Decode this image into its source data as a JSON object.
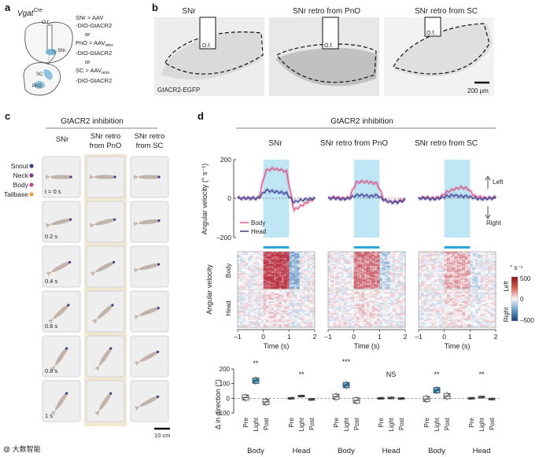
{
  "panel_labels": [
    "a",
    "b",
    "c",
    "d"
  ],
  "colors": {
    "body": "#d9558a",
    "head": "#3c3f8f",
    "light_band": "#bfe6f5",
    "light_bar": "#2aa7d6",
    "box_fill": "#5ab8e3",
    "heat_pos": "#b2182b",
    "heat_neg": "#2166ac",
    "legend_snout": "#3b3e8c",
    "legend_neck": "#7a3a8a",
    "legend_body": "#c2478a",
    "legend_tailbase": "#e8a23a"
  },
  "panel_a": {
    "title": "Vgat",
    "title_sup": "Cre",
    "of_label": "O.f.",
    "snr_label": "SNr",
    "sc_label": "SC",
    "pno_label": "PnO",
    "injections": [
      {
        "line1": "SNr > AAV",
        "line2": "-DIO-GtACR2"
      },
      {
        "line1": "PnO > AAV",
        "sub": "retro",
        "line2": "-DIO-GtACR2"
      },
      {
        "line1": "SC > AAV",
        "sub": "retro",
        "line2": "-DIO-GtACR2"
      }
    ],
    "or_label": "or"
  },
  "panel_b": {
    "titles": [
      "SNr",
      "SNr retro from PnO",
      "SNr retro from SC"
    ],
    "of_label": "O.f.",
    "stain_label": "GtACR2-EGFP",
    "scale_label": "200 μm"
  },
  "panel_c": {
    "header": "GtACR2 inhibition",
    "columns": [
      "SNr",
      "SNr retro\nfrom PnO",
      "SNr retro\nfrom SC"
    ],
    "legend": [
      "Snout",
      "Neck",
      "Body",
      "Tailbase"
    ],
    "times": [
      "t = 0 s",
      "0.2 s",
      "0.4 s",
      "0.6 s",
      "0.8 s",
      "1 s"
    ],
    "scale_label": "10 cm"
  },
  "panel_d": {
    "header": "GtACR2 inhibition",
    "columns": [
      "SNr",
      "SNr retro from PnO",
      "SNr retro from SC"
    ],
    "y_label": "Angular velocity (° s⁻¹)",
    "y_ticks": [
      "200",
      "0",
      "–200"
    ],
    "left_label": "Left",
    "right_label": "Right",
    "legend": [
      "Body",
      "Head"
    ],
    "heat_ylabel": "Angular velocity",
    "heat_rows": [
      "Body",
      "Head"
    ],
    "x_ticks": [
      "–1",
      "0",
      "1",
      "2"
    ],
    "x_label": "Time (s)",
    "cbar_unit": "° s⁻¹",
    "cbar_ticks": [
      "500",
      "0",
      "–500"
    ],
    "cbar_left": "Left",
    "cbar_right": "Right"
  },
  "chart_data": {
    "type": "box",
    "title": "",
    "ylabel": "Δ in direction (°)",
    "yticks": [
      "200",
      "100",
      "0",
      "–100"
    ],
    "ylim": [
      -100,
      200
    ],
    "conditions": [
      "Pre",
      "Light",
      "Post"
    ],
    "groups": [
      {
        "name": "Body",
        "panel": "SNr",
        "medians": [
          5,
          120,
          -25
        ],
        "significance": "**"
      },
      {
        "name": "Head",
        "panel": "SNr",
        "medians": [
          0,
          15,
          -8
        ],
        "significance": "**"
      },
      {
        "name": "Body",
        "panel": "SNr retro from PnO",
        "medians": [
          10,
          90,
          -15
        ],
        "significance": "***"
      },
      {
        "name": "Head",
        "panel": "SNr retro from PnO",
        "medians": [
          0,
          2,
          -2
        ],
        "significance": "NS"
      },
      {
        "name": "Body",
        "panel": "SNr retro from SC",
        "medians": [
          -5,
          55,
          15
        ],
        "significance": "**"
      },
      {
        "name": "Head",
        "panel": "SNr retro from SC",
        "medians": [
          0,
          8,
          -5
        ],
        "significance": "**"
      }
    ]
  },
  "watermark": "@ 大数智能"
}
